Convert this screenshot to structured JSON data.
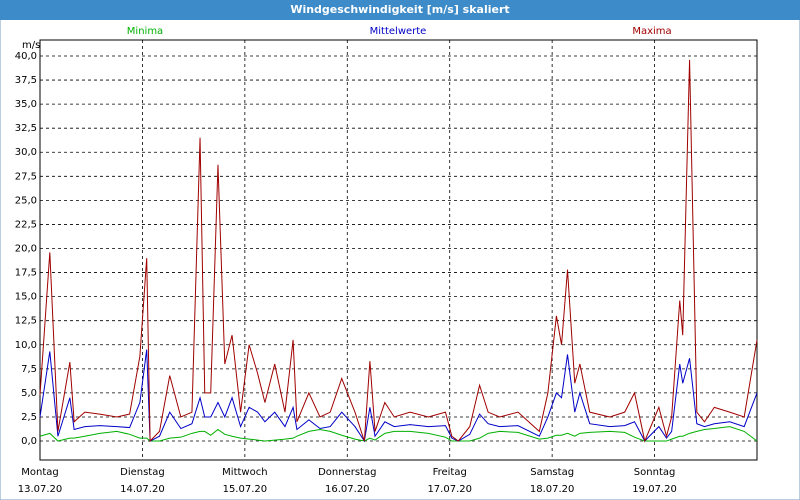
{
  "chart_data": {
    "type": "line",
    "title": "Windgeschwindigkeit [m/s] skaliert",
    "y_label": "m/s",
    "xlim": [
      0,
      168
    ],
    "ylim": [
      -1.97,
      41.66
    ],
    "grid": true,
    "xticks": [
      {
        "value": 0,
        "label": "Montag",
        "date": "13.07.20"
      },
      {
        "value": 24,
        "label": "Dienstag",
        "date": "14.07.20"
      },
      {
        "value": 48,
        "label": "Mittwoch",
        "date": "15.07.20"
      },
      {
        "value": 72,
        "label": "Donnerstag",
        "date": "16.07.20"
      },
      {
        "value": 96,
        "label": "Freitag",
        "date": "17.07.20"
      },
      {
        "value": 120,
        "label": "Samstag",
        "date": "18.07.20"
      },
      {
        "value": 144,
        "label": "Sonntag",
        "date": "19.07.20"
      }
    ],
    "yticks": [
      {
        "value": 0,
        "label": "0,0"
      },
      {
        "value": 2.5,
        "label": "2,5"
      },
      {
        "value": 5,
        "label": "5,0"
      },
      {
        "value": 7.5,
        "label": "7,5"
      },
      {
        "value": 10,
        "label": "10,0"
      },
      {
        "value": 12.5,
        "label": "12,5"
      },
      {
        "value": 15,
        "label": "15,0"
      },
      {
        "value": 17.5,
        "label": "17,5"
      },
      {
        "value": 20,
        "label": "20,0"
      },
      {
        "value": 22.5,
        "label": "22,5"
      },
      {
        "value": 25,
        "label": "25,0"
      },
      {
        "value": 27.5,
        "label": "27,5"
      },
      {
        "value": 30,
        "label": "30,0"
      },
      {
        "value": 32.5,
        "label": "32,5"
      },
      {
        "value": 35,
        "label": "35,0"
      },
      {
        "value": 37.5,
        "label": "37,5"
      },
      {
        "value": 40,
        "label": "40,0"
      }
    ],
    "x": [
      0,
      2.3,
      4.2,
      7,
      8,
      10.5,
      14,
      18,
      21,
      23.4,
      25,
      25.8,
      28,
      30.4,
      33,
      35.6,
      37.5,
      38.6,
      40,
      41.7,
      43.3,
      45,
      47,
      49,
      51,
      52.7,
      55,
      57.4,
      59.3,
      60.2,
      63,
      65.6,
      68,
      70.7,
      73.8,
      76,
      77.3,
      78.5,
      80.8,
      83,
      86.7,
      91,
      95,
      96.5,
      98,
      100.7,
      103,
      105,
      107.7,
      112,
      117,
      119,
      121,
      122.2,
      123.6,
      125.3,
      126.5,
      128.8,
      133.5,
      137,
      139.3,
      141.7,
      145,
      146.8,
      148,
      149.9,
      150.6,
      152.2,
      153.9,
      155.7,
      158,
      161.6,
      165,
      168
    ],
    "series": [
      {
        "name": "Minima",
        "color": "#00b000",
        "values": [
          0.5,
          0.8,
          0,
          0.3,
          0.3,
          0.5,
          0.8,
          1,
          0.7,
          0.3,
          0.3,
          0,
          0,
          0.3,
          0.4,
          0.8,
          1,
          1,
          0.6,
          1.2,
          0.7,
          0.5,
          0.3,
          0.2,
          0.1,
          0,
          0.1,
          0.2,
          0.3,
          0.5,
          1,
          1.2,
          1,
          0.6,
          0.2,
          0,
          0.3,
          0.1,
          0.8,
          1,
          1,
          0.8,
          0.4,
          0,
          0,
          0,
          0.3,
          0.8,
          1,
          0.9,
          0.2,
          0.3,
          0.6,
          0.6,
          0.8,
          0.5,
          0.8,
          0.9,
          1,
          0.9,
          0.4,
          0,
          0,
          0,
          0.2,
          0.5,
          0.5,
          0.8,
          1,
          1.2,
          1.3,
          1.5,
          1,
          0
        ]
      },
      {
        "name": "Mittelwerte",
        "color": "#0000c8",
        "values": [
          2.5,
          9.3,
          0.5,
          4.5,
          1.2,
          1.5,
          1.6,
          1.5,
          1.4,
          4,
          9.5,
          0,
          0.5,
          3,
          1.3,
          1.8,
          4.5,
          2.5,
          2.5,
          4,
          2.5,
          4.5,
          1.5,
          3.5,
          3,
          2,
          3,
          1.5,
          3.5,
          1.2,
          2.2,
          1.3,
          1.5,
          3,
          1.5,
          0,
          3.5,
          0.5,
          2,
          1.5,
          1.7,
          1.5,
          1.6,
          0.3,
          0,
          0.7,
          2.8,
          1.8,
          1.5,
          1.6,
          0.5,
          2.5,
          5,
          4.5,
          9,
          3,
          5,
          1.8,
          1.5,
          1.6,
          2,
          0,
          1.5,
          0.3,
          1,
          8,
          6,
          8.6,
          1.8,
          1.5,
          1.8,
          2,
          1.5,
          5
        ]
      },
      {
        "name": "Maxima",
        "color": "#a00000",
        "values": [
          4.8,
          19.6,
          1,
          8.2,
          2,
          3,
          2.8,
          2.5,
          2.8,
          8.8,
          19,
          0,
          1,
          6.8,
          2.5,
          3,
          31.5,
          5,
          5,
          28.7,
          8,
          11,
          3,
          10,
          7,
          4,
          8,
          3,
          10.5,
          2,
          5,
          2.5,
          3,
          6.5,
          3,
          0,
          8.3,
          1,
          4,
          2.5,
          3,
          2.5,
          3,
          0.5,
          0,
          1.5,
          5.8,
          3,
          2.5,
          3,
          1,
          5,
          13,
          10,
          17.8,
          6,
          8,
          3,
          2.5,
          3,
          5,
          0,
          3.5,
          0.5,
          2.5,
          14.6,
          11,
          39.6,
          3,
          2,
          3.5,
          3,
          2.5,
          10.5
        ]
      }
    ]
  }
}
